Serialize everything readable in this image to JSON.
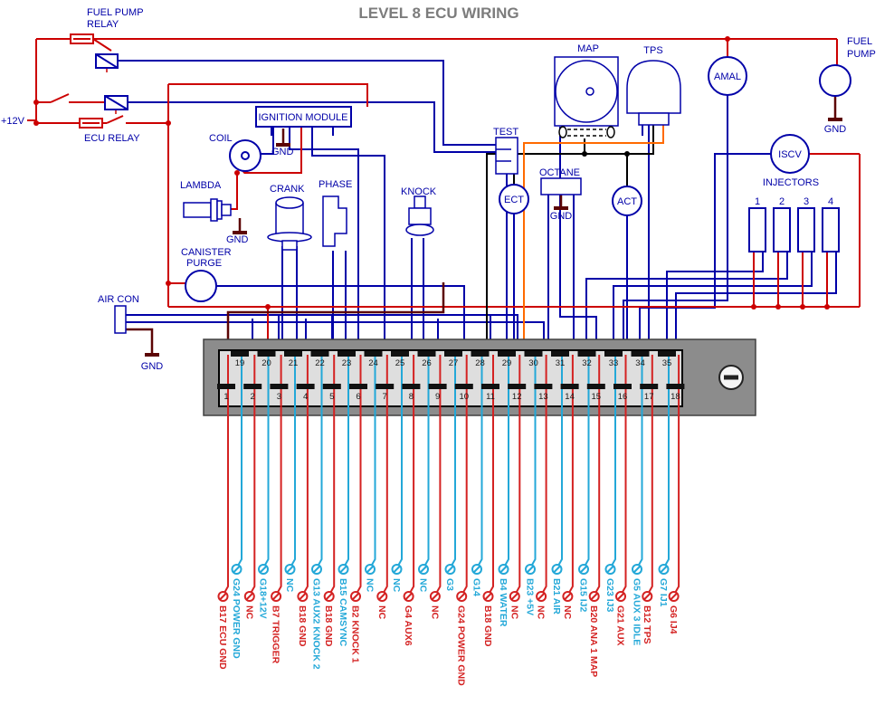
{
  "title": "LEVEL 8 ECU WIRING",
  "colors": {
    "wire_blue": "#0000A8",
    "wire_red": "#CC0000",
    "wire_maroon": "#5C0404",
    "wire_orange": "#FF6A00",
    "wire_black": "#000000",
    "harness_red": "#D42222",
    "harness_cyan": "#23A8D8",
    "text_blue": "#0000A8",
    "title_gray": "#7C7C7C"
  },
  "components": {
    "fuel_pump_relay_line1": "FUEL PUMP",
    "fuel_pump_relay_line2": "RELAY",
    "plus_12v": "+12V",
    "ecu_relay": "ECU RELAY",
    "ignition_module": "IGNITION MODULE",
    "coil": "COIL",
    "coil_gnd": "GND",
    "lambda": "LAMBDA",
    "lambda_gnd": "GND",
    "crank": "CRANK",
    "phase": "PHASE",
    "knock": "KNOCK",
    "canister_line1": "CANISTER",
    "canister_line2": "PURGE",
    "air_con": "AIR CON",
    "air_con_gnd": "GND",
    "test": "TEST",
    "ect": "ECT",
    "octane": "OCTANE",
    "octane_gnd": "GND",
    "act": "ACT",
    "map": "MAP",
    "tps": "TPS",
    "amal": "AMAL",
    "fuel_pump_line1": "FUEL",
    "fuel_pump_line2": "PUMP",
    "fuel_pump_gnd": "GND",
    "iscv": "ISCV",
    "injectors": "INJECTORS",
    "injector_numbers": [
      "1",
      "2",
      "3",
      "4"
    ]
  },
  "connector": {
    "top_pins": [
      19,
      20,
      21,
      22,
      23,
      24,
      25,
      26,
      27,
      28,
      29,
      30,
      31,
      32,
      33,
      34,
      35
    ],
    "bottom_pins": [
      1,
      2,
      3,
      4,
      5,
      6,
      7,
      8,
      9,
      10,
      11,
      12,
      13,
      14,
      15,
      16,
      17,
      18
    ]
  },
  "harness": [
    {
      "label": "B17 ECU GND",
      "color": "red"
    },
    {
      "label": "G24 POWER GND",
      "color": "cyan"
    },
    {
      "label": "NC",
      "color": "red"
    },
    {
      "label": "G18+12V",
      "color": "cyan"
    },
    {
      "label": "B7 TRIGGER",
      "color": "red"
    },
    {
      "label": "NC",
      "color": "cyan"
    },
    {
      "label": "B18 GND",
      "color": "red"
    },
    {
      "label": "G13 AUX2 KNOCK 2",
      "color": "cyan"
    },
    {
      "label": "B18 GND",
      "color": "red"
    },
    {
      "label": "B15 CAMSYNC",
      "color": "cyan"
    },
    {
      "label": "B2 KNOCK 1",
      "color": "red"
    },
    {
      "label": "NC",
      "color": "cyan"
    },
    {
      "label": "NC",
      "color": "red"
    },
    {
      "label": "NC",
      "color": "cyan"
    },
    {
      "label": "G4 AUX6",
      "color": "red"
    },
    {
      "label": "NC",
      "color": "cyan"
    },
    {
      "label": "NC",
      "color": "red"
    },
    {
      "label": "G3",
      "color": "cyan"
    },
    {
      "label": "G24 POWER GND",
      "color": "red"
    },
    {
      "label": "G14",
      "color": "cyan"
    },
    {
      "label": "B18 GND",
      "color": "red"
    },
    {
      "label": "B4 WATER",
      "color": "cyan"
    },
    {
      "label": "NC",
      "color": "red"
    },
    {
      "label": "B23 +5V",
      "color": "cyan"
    },
    {
      "label": "NC",
      "color": "red"
    },
    {
      "label": "B21 AIR",
      "color": "cyan"
    },
    {
      "label": "NC",
      "color": "red"
    },
    {
      "label": "G15 IJ2",
      "color": "cyan"
    },
    {
      "label": "B20 ANA 1 MAP",
      "color": "red"
    },
    {
      "label": "G23 IJ3",
      "color": "cyan"
    },
    {
      "label": "G21 AUX",
      "color": "red"
    },
    {
      "label": "G5 AUX 3 IDLE",
      "color": "cyan"
    },
    {
      "label": "B12 TPS",
      "color": "red"
    },
    {
      "label": "G7 IJ1",
      "color": "cyan"
    },
    {
      "label": "G6 IJ4",
      "color": "red"
    }
  ]
}
